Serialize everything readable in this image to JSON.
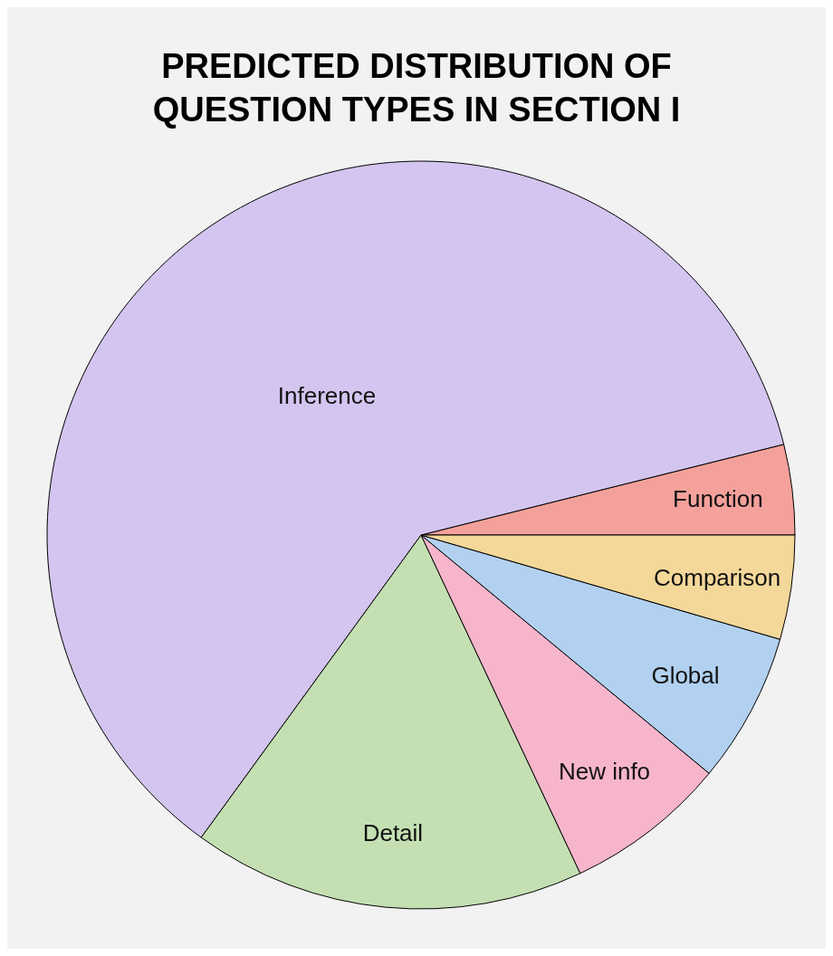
{
  "chart_data": {
    "type": "pie",
    "title": "PREDICTED DISTRIBUTION OF QUESTION TYPES IN SECTION I",
    "categories": [
      "Function",
      "Inference",
      "Detail",
      "New info",
      "Global",
      "Comparison"
    ],
    "values": [
      3.9,
      61.1,
      17.0,
      7.0,
      6.5,
      4.5
    ],
    "colors": [
      "#f4a19b",
      "#d3c5ef",
      "#c4e0b3",
      "#f6b5cb",
      "#b2d1f0",
      "#f4d89a"
    ],
    "legend": false
  }
}
